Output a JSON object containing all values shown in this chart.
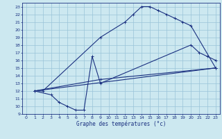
{
  "title": "Graphe des températures (°c)",
  "bg_color": "#cce8f0",
  "line_color": "#1a3080",
  "grid_color": "#99c4d8",
  "xlim": [
    -0.5,
    23.5
  ],
  "ylim": [
    9,
    23.5
  ],
  "xticks": [
    0,
    1,
    2,
    3,
    4,
    5,
    6,
    7,
    8,
    9,
    10,
    11,
    12,
    13,
    14,
    15,
    16,
    17,
    18,
    19,
    20,
    21,
    22,
    23
  ],
  "yticks": [
    9,
    10,
    11,
    12,
    13,
    14,
    15,
    16,
    17,
    18,
    19,
    20,
    21,
    22,
    23
  ],
  "series": [
    {
      "x": [
        1,
        2,
        9,
        12,
        13,
        14,
        15,
        16,
        17,
        18,
        19,
        20,
        23
      ],
      "y": [
        12,
        12,
        19,
        21,
        22,
        23,
        23,
        22.5,
        22,
        21.5,
        21,
        20.5,
        15
      ]
    },
    {
      "x": [
        1,
        3,
        4,
        5,
        6,
        7,
        8,
        9,
        20,
        21,
        22,
        23
      ],
      "y": [
        12,
        11.5,
        10.5,
        10,
        9.5,
        9.5,
        16.5,
        13,
        18,
        17,
        16.5,
        16
      ]
    },
    {
      "x": [
        1,
        23
      ],
      "y": [
        12,
        15
      ]
    },
    {
      "x": [
        1,
        9,
        23
      ],
      "y": [
        12,
        13.5,
        15
      ]
    }
  ]
}
